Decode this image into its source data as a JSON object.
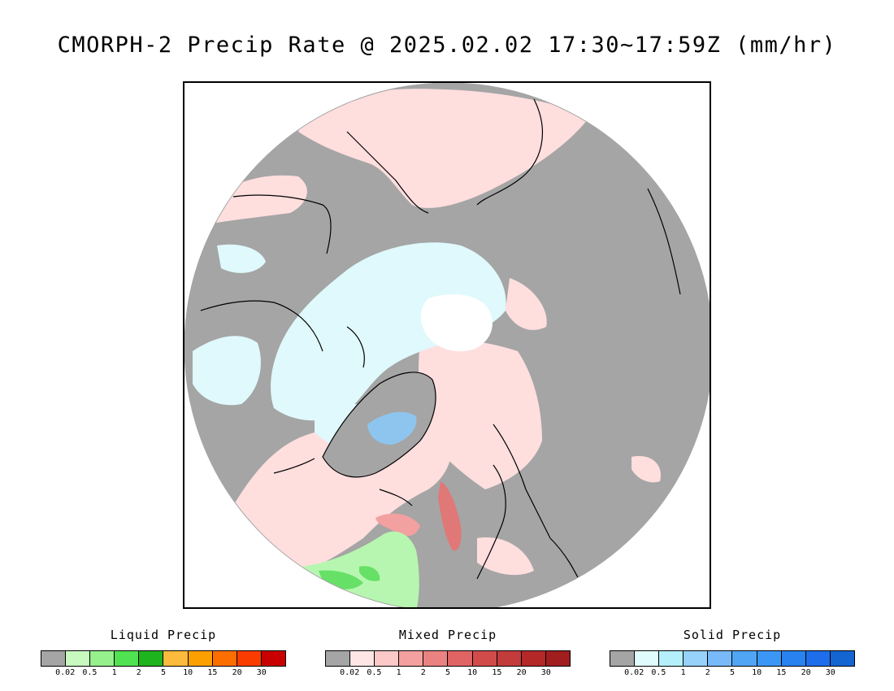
{
  "title": "CMORPH-2 Precip Rate @ 2025.02.02 17:30~17:59Z (mm/hr)",
  "colors": {
    "background": "#ffffff",
    "no_precip": "#a5a5a5",
    "mixed_light": "#ffdede",
    "mixed_medium": "#f2a0a0",
    "mixed_heavy": "#d95c5c",
    "solid_light": "#dff9fc",
    "solid_medium": "#8ec5ee",
    "liquid_light": "#b7f6b0",
    "liquid_medium": "#66e066",
    "coastline": "#000000"
  },
  "legends": [
    {
      "title": "Liquid Precip",
      "ticks": [
        "0.02",
        "0.5",
        "1",
        "2",
        "5",
        "10",
        "15",
        "20",
        "30"
      ],
      "colors": [
        "#a5a5a5",
        "#c8fac0",
        "#96f08c",
        "#50e250",
        "#1eb41e",
        "#fcbb3c",
        "#fca000",
        "#fc6e00",
        "#fa3c00",
        "#c80000"
      ]
    },
    {
      "title": "Mixed Precip",
      "ticks": [
        "0.02",
        "0.5",
        "1",
        "2",
        "5",
        "10",
        "15",
        "20",
        "30"
      ],
      "colors": [
        "#a5a5a5",
        "#ffe6e6",
        "#fcc8c8",
        "#f5a0a0",
        "#eb8282",
        "#e06464",
        "#d24b4b",
        "#c33c3c",
        "#b42828",
        "#a01e1e"
      ]
    },
    {
      "title": "Solid Precip",
      "ticks": [
        "0.02",
        "0.5",
        "1",
        "2",
        "5",
        "10",
        "15",
        "20",
        "30"
      ],
      "colors": [
        "#a5a5a5",
        "#e1fcfc",
        "#b4f0fc",
        "#96d2fa",
        "#78b9fa",
        "#50a5f5",
        "#3c96f5",
        "#2882f0",
        "#1e6eeb",
        "#1464d2"
      ]
    }
  ]
}
